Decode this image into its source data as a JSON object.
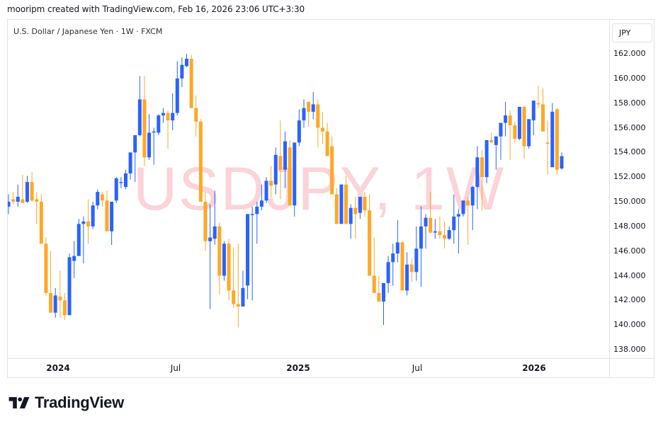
{
  "header": {
    "credit": "mooripm created with TradingView.com, Feb 16, 2026 23:06 UTC+3:30"
  },
  "chart": {
    "legend": "U.S. Dollar / Japanese Yen · 1W · FXCM",
    "currency_button": "JPY",
    "watermark": "USDJPY, 1W",
    "colors": {
      "up": "#2962ff",
      "down": "#ffa726",
      "watermark": "#fbd3d8",
      "grid_border": "#e0e3eb",
      "text": "#131722"
    },
    "y_ticks": [
      "162.000",
      "160.000",
      "158.000",
      "156.000",
      "154.000",
      "152.000",
      "150.000",
      "148.000",
      "146.000",
      "144.000",
      "142.000",
      "140.000",
      "138.000"
    ],
    "x_ticks": [
      {
        "label": "2024",
        "major": true
      },
      {
        "label": "Jul",
        "major": false
      },
      {
        "label": "2025",
        "major": true
      },
      {
        "label": "Jul",
        "major": false
      },
      {
        "label": "2026",
        "major": true
      }
    ]
  },
  "footer": {
    "brand": "TradingView",
    "logo_icon": "tradingview-logo-icon"
  },
  "chart_data": {
    "type": "candlestick",
    "title": "U.S. Dollar / Japanese Yen · 1W · FXCM",
    "symbol": "USDJPY",
    "interval": "1W",
    "source": "FXCM",
    "xlabel": "",
    "ylabel": "JPY",
    "ylim": [
      137.5,
      162.5
    ],
    "y_ticks": [
      138,
      140,
      142,
      144,
      146,
      148,
      150,
      152,
      154,
      156,
      158,
      160,
      162
    ],
    "x_tick_labels": [
      "2024",
      "Jul",
      "2025",
      "Jul",
      "2026"
    ],
    "grid": false,
    "legend_position": "top-left",
    "up_color": "#2962ff",
    "down_color": "#ffa726",
    "candles_ohlc": [
      [
        149.6,
        150.6,
        149.0,
        150.0
      ],
      [
        150.2,
        150.8,
        149.8,
        150.0
      ],
      [
        150.0,
        151.4,
        149.6,
        150.4
      ],
      [
        150.2,
        152.2,
        149.9,
        149.9
      ],
      [
        150.0,
        152.1,
        149.9,
        151.6
      ],
      [
        151.6,
        152.4,
        150.0,
        150.1
      ],
      [
        150.2,
        150.8,
        148.2,
        150.0
      ],
      [
        150.0,
        150.6,
        146.8,
        146.6
      ],
      [
        146.6,
        147.1,
        142.4,
        142.6
      ],
      [
        142.6,
        146.0,
        141.0,
        141.0
      ],
      [
        141.0,
        143.0,
        140.6,
        142.4
      ],
      [
        142.3,
        144.4,
        140.6,
        142.0
      ],
      [
        142.0,
        142.6,
        140.4,
        140.8
      ],
      [
        140.8,
        145.8,
        140.8,
        145.5
      ],
      [
        145.2,
        146.8,
        143.8,
        145.6
      ],
      [
        145.6,
        148.6,
        145.6,
        148.2
      ],
      [
        148.2,
        148.8,
        145.0,
        148.4
      ],
      [
        148.4,
        150.2,
        146.6,
        148.0
      ],
      [
        148.0,
        150.0,
        147.8,
        149.7
      ],
      [
        149.7,
        151.0,
        149.4,
        150.8
      ],
      [
        150.6,
        150.8,
        149.6,
        150.1
      ],
      [
        150.1,
        150.9,
        147.6,
        147.6
      ],
      [
        147.6,
        150.0,
        146.5,
        150.0
      ],
      [
        150.1,
        152.0,
        149.9,
        151.9
      ],
      [
        151.6,
        152.0,
        151.1,
        151.6
      ],
      [
        151.2,
        152.6,
        151.0,
        152.3
      ],
      [
        152.3,
        154.0,
        151.8,
        154.0
      ],
      [
        154.0,
        154.4,
        151.6,
        155.4
      ],
      [
        155.4,
        160.2,
        155.3,
        158.3
      ],
      [
        158.3,
        160.2,
        152.9,
        153.6
      ],
      [
        153.6,
        157.1,
        153.4,
        155.6
      ],
      [
        155.7,
        156.0,
        153.0,
        155.7
      ],
      [
        155.6,
        157.1,
        155.4,
        157.0
      ],
      [
        157.0,
        157.6,
        156.4,
        157.2
      ],
      [
        157.2,
        157.4,
        154.3,
        156.6
      ],
      [
        156.6,
        158.8,
        155.8,
        157.2
      ],
      [
        157.2,
        161.4,
        157.0,
        160.0
      ],
      [
        160.0,
        161.7,
        159.3,
        161.1
      ],
      [
        161.0,
        162.0,
        160.9,
        161.6
      ],
      [
        161.6,
        161.9,
        157.8,
        157.6
      ],
      [
        157.6,
        158.6,
        155.3,
        156.5
      ],
      [
        156.5,
        156.7,
        150.5,
        150.0
      ],
      [
        150.0,
        150.8,
        146.0,
        146.8
      ],
      [
        146.8,
        149.8,
        141.3,
        147.1
      ],
      [
        147.0,
        150.9,
        146.5,
        148.0
      ],
      [
        148.0,
        148.3,
        142.5,
        144.0
      ],
      [
        144.0,
        146.8,
        143.6,
        146.6
      ],
      [
        146.6,
        147.0,
        142.0,
        142.8
      ],
      [
        142.8,
        146.3,
        141.4,
        141.7
      ],
      [
        141.7,
        146.6,
        139.8,
        141.5
      ],
      [
        141.5,
        144.4,
        141.5,
        143.0
      ],
      [
        143.2,
        146.3,
        142.1,
        149.0
      ],
      [
        149.0,
        149.6,
        142.0,
        149.0
      ],
      [
        149.0,
        150.0,
        146.6,
        149.6
      ],
      [
        149.6,
        151.4,
        149.3,
        150.1
      ],
      [
        150.1,
        152.0,
        149.9,
        151.7
      ],
      [
        151.7,
        152.9,
        150.3,
        151.3
      ],
      [
        151.4,
        154.4,
        150.6,
        153.8
      ],
      [
        153.7,
        156.6,
        150.2,
        152.6
      ],
      [
        152.6,
        155.7,
        151.1,
        154.9
      ],
      [
        154.4,
        155.0,
        151.0,
        149.7
      ],
      [
        149.7,
        153.4,
        148.8,
        154.8
      ],
      [
        154.8,
        157.5,
        154.5,
        156.6
      ],
      [
        156.6,
        158.3,
        156.0,
        157.6
      ],
      [
        158.1,
        158.1,
        156.1,
        157.3
      ],
      [
        157.3,
        158.9,
        156.7,
        157.9
      ],
      [
        157.9,
        158.3,
        154.4,
        156.0
      ],
      [
        156.0,
        157.3,
        154.7,
        155.7
      ],
      [
        155.7,
        156.4,
        154.0,
        153.7
      ],
      [
        154.5,
        155.3,
        151.4,
        150.6
      ],
      [
        150.6,
        151.1,
        148.6,
        148.2
      ],
      [
        148.2,
        151.1,
        148.8,
        151.4
      ],
      [
        151.4,
        152.1,
        148.9,
        148.2
      ],
      [
        148.2,
        149.8,
        147.0,
        149.5
      ],
      [
        149.5,
        150.4,
        147.0,
        149.0
      ],
      [
        149.1,
        150.3,
        148.6,
        150.4
      ],
      [
        150.4,
        150.8,
        148.8,
        149.3
      ],
      [
        149.3,
        150.6,
        145.6,
        144.0
      ],
      [
        144.0,
        147.1,
        143.4,
        142.6
      ],
      [
        142.6,
        144.0,
        142.3,
        141.9
      ],
      [
        141.9,
        143.4,
        140.0,
        143.4
      ],
      [
        143.4,
        145.6,
        142.6,
        145.1
      ],
      [
        145.1,
        146.6,
        143.2,
        145.8
      ],
      [
        145.8,
        148.5,
        145.1,
        146.7
      ],
      [
        146.7,
        146.8,
        143.5,
        142.8
      ],
      [
        142.8,
        145.9,
        142.4,
        144.9
      ],
      [
        144.9,
        145.4,
        143.5,
        144.3
      ],
      [
        144.3,
        148.0,
        143.6,
        146.2
      ],
      [
        146.2,
        149.6,
        143.1,
        148.0
      ],
      [
        148.0,
        149.0,
        146.2,
        148.7
      ],
      [
        148.7,
        150.8,
        147.4,
        147.5
      ],
      [
        147.5,
        148.6,
        147.0,
        147.6
      ],
      [
        147.6,
        148.8,
        147.0,
        147.3
      ],
      [
        147.3,
        148.4,
        146.2,
        147.0
      ],
      [
        147.0,
        148.0,
        146.9,
        147.7
      ],
      [
        147.7,
        150.6,
        146.6,
        148.8
      ],
      [
        148.8,
        149.4,
        145.8,
        149.0
      ],
      [
        149.0,
        150.0,
        148.8,
        150.1
      ],
      [
        150.1,
        150.4,
        146.5,
        149.7
      ],
      [
        149.7,
        151.3,
        147.7,
        151.2
      ],
      [
        151.2,
        154.5,
        149.4,
        153.6
      ],
      [
        153.6,
        154.2,
        149.3,
        152.0
      ],
      [
        152.0,
        154.4,
        151.5,
        155.0
      ],
      [
        155.0,
        155.6,
        154.9,
        154.8
      ],
      [
        154.6,
        154.9,
        152.6,
        155.3
      ],
      [
        155.3,
        156.4,
        153.4,
        156.4
      ],
      [
        156.4,
        158.1,
        155.3,
        157.0
      ],
      [
        157.0,
        157.4,
        153.4,
        156.2
      ],
      [
        156.2,
        156.5,
        154.8,
        155.1
      ],
      [
        155.1,
        157.1,
        155.0,
        157.7
      ],
      [
        157.7,
        157.8,
        153.5,
        154.5
      ],
      [
        154.5,
        156.7,
        154.3,
        156.7
      ],
      [
        156.6,
        158.2,
        155.4,
        158.2
      ],
      [
        158.0,
        159.4,
        157.6,
        157.9
      ],
      [
        157.9,
        159.2,
        155.7,
        155.7
      ],
      [
        154.8,
        156.6,
        152.2,
        154.7
      ],
      [
        152.8,
        158.0,
        152.8,
        157.3
      ],
      [
        157.5,
        157.6,
        152.2,
        152.6
      ],
      [
        152.7,
        154.0,
        152.6,
        153.7
      ]
    ]
  }
}
